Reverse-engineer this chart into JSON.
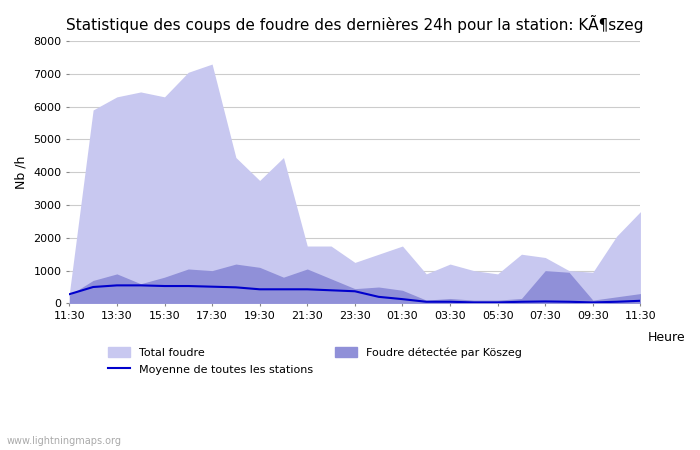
{
  "title": "Statistique des coups de foudre des dernières 24h pour la station: KÃ¶szeg",
  "ylabel": "Nb /h",
  "xlabel_right": "Heure",
  "watermark": "www.lightningmaps.org",
  "x_labels": [
    "11:30",
    "13:30",
    "15:30",
    "17:30",
    "19:30",
    "21:30",
    "23:30",
    "01:30",
    "03:30",
    "05:30",
    "07:30",
    "09:30",
    "11:30"
  ],
  "ylim": [
    0,
    8000
  ],
  "yticks": [
    0,
    1000,
    2000,
    3000,
    4000,
    5000,
    6000,
    7000,
    8000
  ],
  "color_total": "#c8c8f0",
  "color_local": "#9090d8",
  "color_mean": "#0000cc",
  "total_foudre": [
    300,
    5900,
    6300,
    6450,
    6300,
    7050,
    7300,
    4450,
    3750,
    4450,
    1750,
    1750,
    1250,
    1500,
    1750,
    900,
    1200,
    1000,
    900,
    1500,
    1400,
    1000,
    950,
    2050,
    2800
  ],
  "local_foudre": [
    250,
    700,
    900,
    600,
    800,
    1050,
    1000,
    1200,
    1100,
    800,
    1050,
    750,
    450,
    500,
    400,
    100,
    150,
    100,
    100,
    150,
    1000,
    950,
    100,
    200,
    300
  ],
  "mean_foudre": [
    280,
    500,
    550,
    550,
    530,
    530,
    510,
    490,
    430,
    430,
    430,
    400,
    370,
    200,
    130,
    50,
    50,
    30,
    30,
    50,
    60,
    50,
    30,
    50,
    80
  ],
  "n_points": 25,
  "n_labels": 13
}
